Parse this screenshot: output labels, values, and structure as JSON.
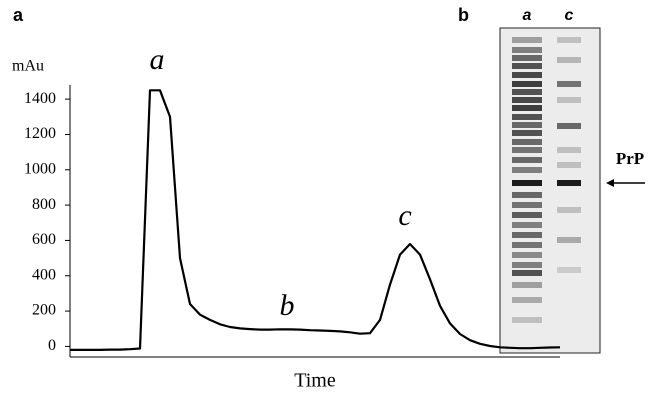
{
  "panel_labels": [
    "a",
    "b"
  ],
  "chart_data": {
    "type": "line",
    "ylabel": "mAu",
    "xlabel": "Time",
    "annotations": [
      "a",
      "b",
      "c"
    ],
    "color": "#000000",
    "values": [
      -20,
      -20,
      -20,
      -20,
      -18,
      -18,
      -16,
      -12,
      1450,
      1450,
      1300,
      500,
      240,
      180,
      150,
      125,
      110,
      102,
      98,
      95,
      95,
      97,
      96,
      95,
      92,
      90,
      88,
      85,
      80,
      72,
      75,
      150,
      350,
      520,
      580,
      520,
      380,
      230,
      130,
      70,
      35,
      15,
      2,
      -5,
      -8,
      -10,
      -10,
      -8,
      -6,
      -5
    ],
    "ylim": [
      -60,
      1480
    ],
    "yticks": [
      0,
      200,
      400,
      600,
      800,
      1000,
      1200,
      1400
    ]
  },
  "gel": {
    "lane_labels": [
      "a",
      "c"
    ],
    "marker": "PrP"
  }
}
